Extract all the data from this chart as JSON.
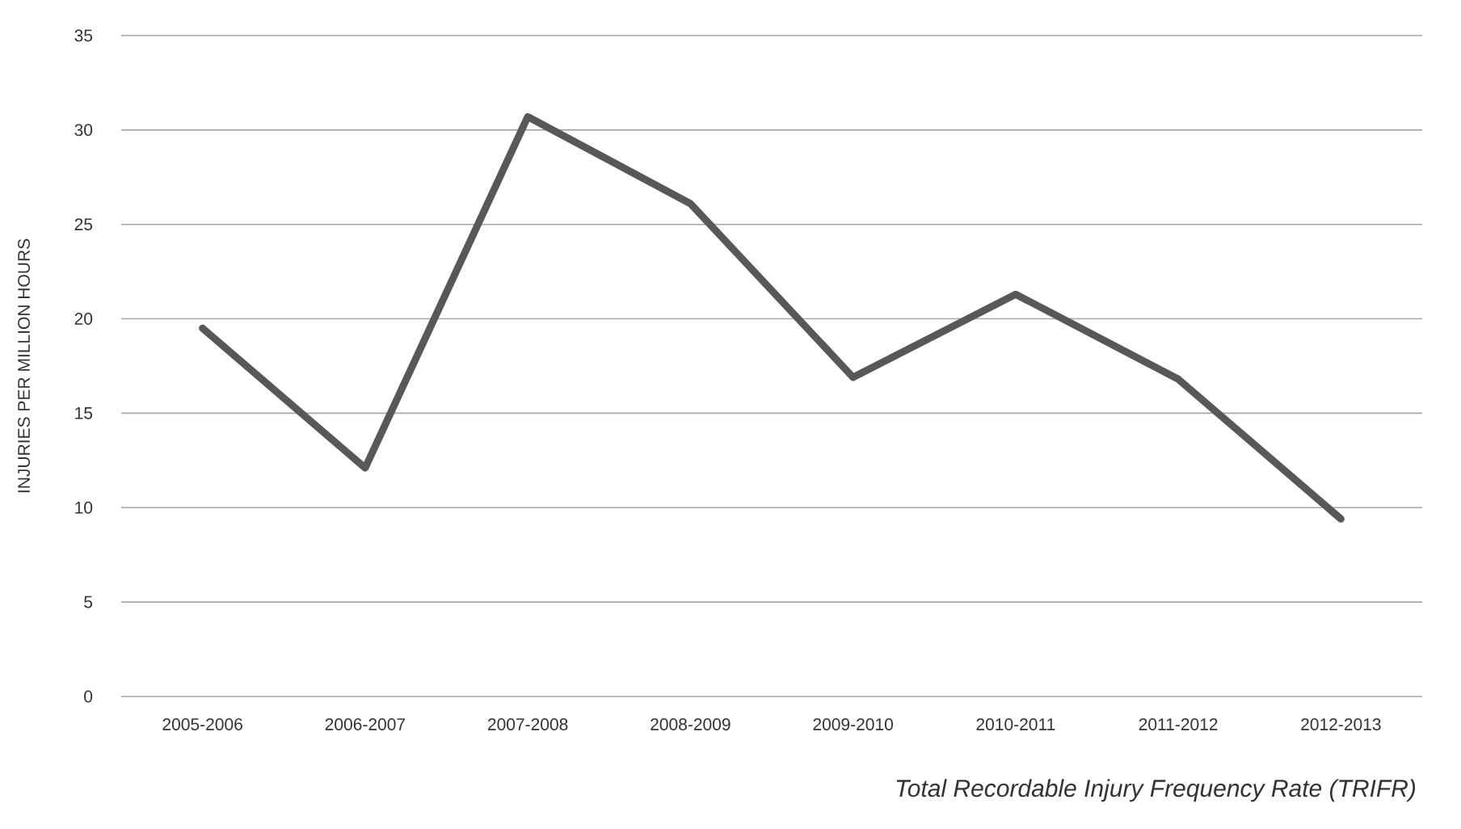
{
  "chart_data": {
    "type": "line",
    "title": "*Total Recordable Injury Frequency Rate (TRIFR)*",
    "ylabel": "INJURIES PER MILLION HOURS",
    "categories": [
      "2005-2006",
      "2006-2007",
      "2007-2008",
      "2008-2009",
      "2009-2010",
      "2010-2011",
      "2011-2012",
      "2012-2013"
    ],
    "series": [
      {
        "color": "#58585a",
        "values": [
          19.5,
          12.1,
          30.7,
          26.1,
          16.9,
          21.3,
          16.8,
          9.4
        ]
      }
    ],
    "ylim": [
      0,
      35
    ],
    "yticks": [
      0,
      5,
      10,
      15,
      20,
      25,
      30,
      35
    ],
    "grid": "y",
    "marker": "none",
    "line_style": "solid"
  }
}
